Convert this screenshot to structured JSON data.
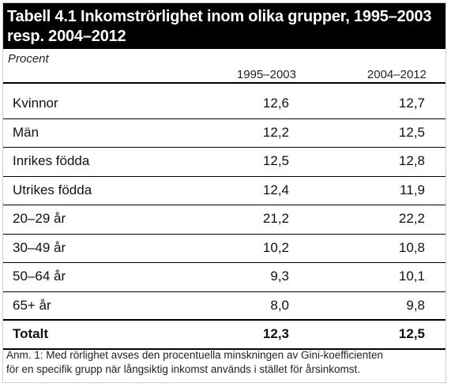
{
  "title": {
    "line1": "Tabell 4.1 Inkomströrlighet inom olika grupper, 1995–2003",
    "line2": "resp. 2004–2012"
  },
  "unit_label": "Procent",
  "columns": [
    "1995–2003",
    "2004–2012"
  ],
  "rows": [
    {
      "label": "Kvinnor",
      "v1": "12,6",
      "v2": "12,7"
    },
    {
      "label": "Män",
      "v1": "12,2",
      "v2": "12,5"
    },
    {
      "label": "Inrikes födda",
      "v1": "12,5",
      "v2": "12,8"
    },
    {
      "label": "Utrikes födda",
      "v1": "12,4",
      "v2": "11,9"
    },
    {
      "label": "20–29 år",
      "v1": "21,2",
      "v2": "22,2"
    },
    {
      "label": "30–49 år",
      "v1": "10,2",
      "v2": "10,8"
    },
    {
      "label": "50–64 år",
      "v1": "9,3",
      "v2": "10,1"
    },
    {
      "label": "65+ år",
      "v1": "8,0",
      "v2": "9,8"
    }
  ],
  "total": {
    "label": "Totalt",
    "v1": "12,3",
    "v2": "12,5"
  },
  "note": {
    "line1": "Anm. 1: Med rörlighet avses den procentuella minskningen av Gini-koefficienten",
    "line2": "för en specifik grupp när långsiktig inkomst används i stället för årsinkomst."
  }
}
